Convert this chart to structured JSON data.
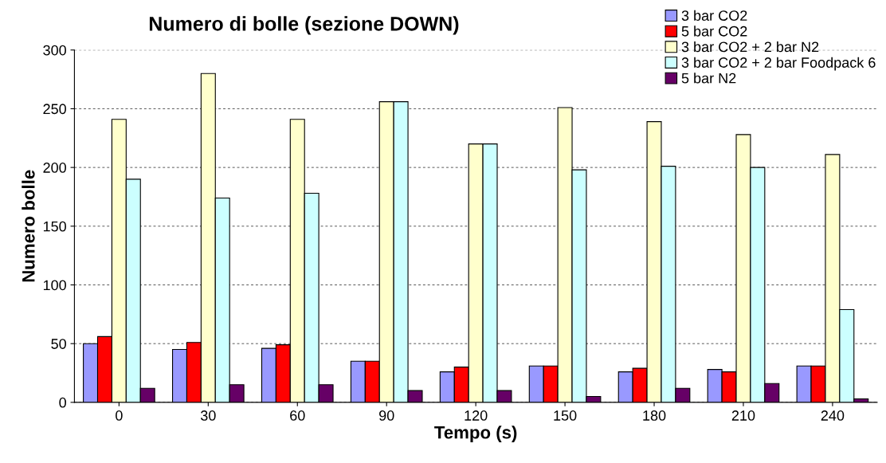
{
  "chart_data": {
    "type": "bar",
    "title": "Numero di bolle (sezione DOWN)",
    "xlabel": "Tempo (s)",
    "ylabel": "Numero bolle",
    "categories": [
      "0",
      "30",
      "60",
      "90",
      "120",
      "150",
      "180",
      "210",
      "240"
    ],
    "series": [
      {
        "name": "3 bar CO2",
        "color": "#9999ff",
        "values": [
          50,
          45,
          46,
          35,
          26,
          31,
          26,
          28,
          31
        ]
      },
      {
        "name": "5 bar CO2",
        "color": "#ff0000",
        "values": [
          56,
          51,
          49,
          35,
          30,
          31,
          29,
          26,
          31
        ]
      },
      {
        "name": "3 bar CO2 + 2 bar N2",
        "color": "#ffffcc",
        "values": [
          241,
          280,
          241,
          256,
          220,
          251,
          239,
          228,
          211
        ]
      },
      {
        "name": "3 bar CO2 + 2 bar Foodpack 6",
        "color": "#ccffff",
        "values": [
          190,
          174,
          178,
          256,
          220,
          198,
          201,
          200,
          79
        ]
      },
      {
        "name": "5 bar N2",
        "color": "#660066",
        "values": [
          12,
          15,
          15,
          10,
          10,
          5,
          12,
          16,
          3
        ]
      }
    ],
    "ylim": [
      0,
      300
    ],
    "yticks": [
      0,
      50,
      100,
      150,
      200,
      250,
      300
    ],
    "grid": "y",
    "legend": "top right"
  }
}
